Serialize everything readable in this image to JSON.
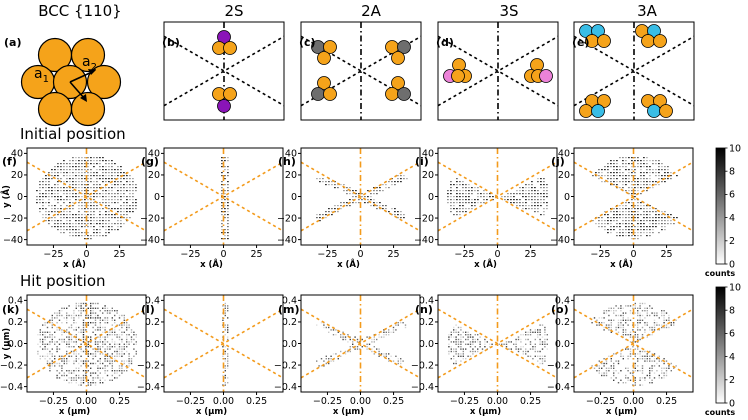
{
  "column_headers": [
    "BCC {110}",
    "2S",
    "2A",
    "3S",
    "3A"
  ],
  "panel_labels": {
    "top": [
      "(a)",
      "(b)",
      "(c)",
      "(d)",
      "(e)"
    ],
    "mid": [
      "(f)",
      "(g)",
      "(h)",
      "(i)",
      "(j)"
    ],
    "bot": [
      "(k)",
      "(l)",
      "(m)",
      "(n)",
      "(o)"
    ]
  },
  "row_titles": {
    "mid": "Initial position",
    "bot": "Hit position"
  },
  "lattice_vectors": {
    "a1": "a",
    "a1_sub": "1",
    "a2": "a",
    "a2_sub": "2"
  },
  "colors": {
    "atom": "#f5a31a",
    "purple": "#8a14b8",
    "gray": "#6e6e6e",
    "pink": "#ec82d8",
    "cyan": "#39bde6",
    "guide": "#f39b1c"
  },
  "chart_data": [
    {
      "type": "heatmap",
      "row": "initial position",
      "xlabel": "x (Å)",
      "ylabel": "y (Å)",
      "xlim": [
        -45,
        45
      ],
      "ylim": [
        -45,
        45
      ],
      "x_ticks": [
        "−25",
        "0",
        "25"
      ],
      "y_ticks": [
        "40",
        "20",
        "0",
        "−20",
        "−40"
      ],
      "guide_line_slopes_deg": [
        90,
        30,
        -30
      ],
      "panels": [
        {
          "label": "(f)",
          "config": "BCC {110} all",
          "pattern": "full disc"
        },
        {
          "label": "(g)",
          "config": "2S",
          "pattern": "vertical strip"
        },
        {
          "label": "(h)",
          "config": "2A",
          "pattern": "X-shaped bands along ±30°"
        },
        {
          "label": "(i)",
          "config": "3S",
          "pattern": "left/right wedges"
        },
        {
          "label": "(j)",
          "config": "3A",
          "pattern": "top/bottom wedges"
        }
      ]
    },
    {
      "type": "heatmap",
      "row": "hit position",
      "xlabel": "x (μm)",
      "ylabel": "y (μm)",
      "xlim": [
        -0.45,
        0.45
      ],
      "ylim": [
        -0.45,
        0.45
      ],
      "x_ticks": [
        "−0.25",
        "0.00",
        "0.25"
      ],
      "y_ticks": [
        "0.4",
        "0.2",
        "0.0",
        "−0.2",
        "−0.4"
      ],
      "panels": [
        {
          "label": "(k)"
        },
        {
          "label": "(l)"
        },
        {
          "label": "(m)"
        },
        {
          "label": "(n)"
        },
        {
          "label": "(o)"
        }
      ]
    }
  ],
  "colorbar": {
    "label": "counts",
    "ticks": [
      "10",
      "8",
      "6",
      "4",
      "2",
      "0"
    ],
    "range": [
      0,
      10
    ]
  }
}
